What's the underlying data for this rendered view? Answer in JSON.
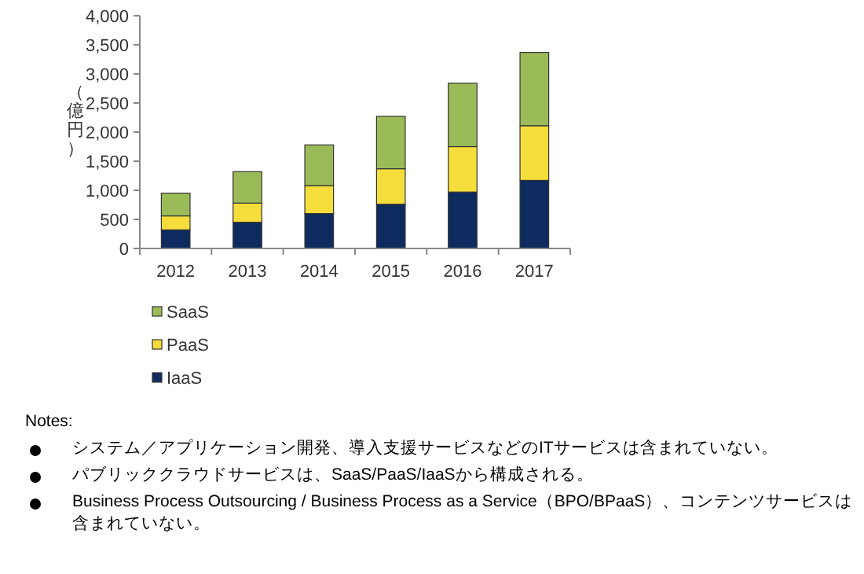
{
  "chart_data": {
    "type": "bar",
    "stacked": true,
    "ylabel": "（億円）",
    "categories": [
      "2012",
      "2013",
      "2014",
      "2015",
      "2016",
      "2017"
    ],
    "series": [
      {
        "name": "IaaS",
        "color": "#0d2b5e",
        "values": [
          320,
          450,
          600,
          760,
          970,
          1170
        ]
      },
      {
        "name": "PaaS",
        "color": "#f5dd3c",
        "values": [
          240,
          330,
          480,
          610,
          780,
          940
        ]
      },
      {
        "name": "SaaS",
        "color": "#9bbb59",
        "values": [
          390,
          540,
          700,
          900,
          1090,
          1260
        ]
      }
    ],
    "ylim": [
      0,
      4000
    ],
    "yticks": [
      0,
      {
        "value": 500,
        "label": "500"
      },
      {
        "value": 1000,
        "label": "1,000"
      },
      {
        "value": 1500,
        "label": "1,500"
      },
      {
        "value": 2000,
        "label": "2,000"
      },
      {
        "value": 2500,
        "label": "2,500"
      },
      {
        "value": 3000,
        "label": "3,000"
      },
      {
        "value": 3500,
        "label": "3,500"
      },
      {
        "value": 4000,
        "label": "4,000"
      }
    ],
    "grid": false,
    "legend": "bottom",
    "annotations": [
      "Notes:",
      "システム／アプリケーション開発、導入支援サービスなどのITサービスは含まれていない。",
      "パブリッククラウドサービスは、SaaS/PaaS/IaaSから構成される。",
      "Business Process Outsourcing / Business Process as a Service（BPO/BPaaS）、コンテンツサービスは含まれていない。"
    ]
  }
}
